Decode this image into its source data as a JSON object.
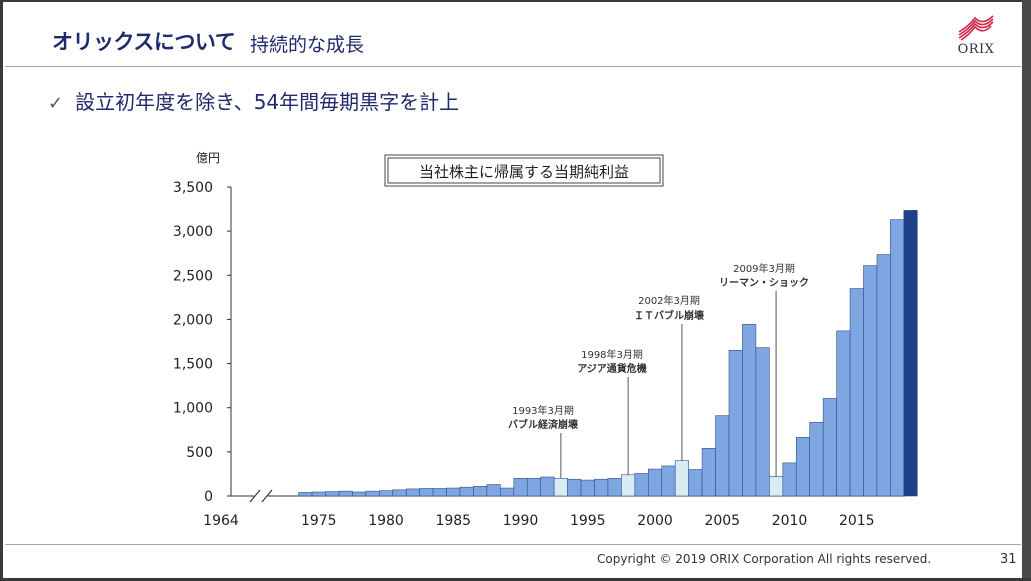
{
  "header": {
    "title": "オリックスについて",
    "subtitle": "持続的な成長",
    "logo_text": "ORIX"
  },
  "bullet": "設立初年度を除き、54年間毎期黒字を計上",
  "footer": {
    "copyright": "Copyright © 2019 ORIX Corporation  All rights reserved.",
    "page_number": "31"
  },
  "colors": {
    "bar": "#7ea6e0",
    "bar_highlight": "#d8ecf4",
    "bar_latest": "#1f3f86",
    "bar_stroke": "#2f4f8f",
    "title_navy": "#1f2a6e",
    "logo_red": "#d0284c"
  },
  "chart_data": {
    "type": "bar",
    "title": "当社株主に帰属する当期純利益",
    "ylabel": "億円",
    "ylim": [
      0,
      3500
    ],
    "yticks": [
      0,
      500,
      1000,
      1500,
      2000,
      2500,
      3000,
      3500
    ],
    "ytick_labels": [
      "0",
      "500",
      "1,000",
      "1,500",
      "2,000",
      "2,500",
      "3,000",
      "3,500"
    ],
    "x_first_label": "1964",
    "xtick_labels": [
      "1975",
      "1980",
      "1985",
      "1990",
      "1995",
      "2000",
      "2005",
      "2010",
      "2015"
    ],
    "axis_break": true,
    "years": [
      1974,
      1975,
      1976,
      1977,
      1978,
      1979,
      1980,
      1981,
      1982,
      1983,
      1984,
      1985,
      1986,
      1987,
      1988,
      1989,
      1990,
      1991,
      1992,
      1993,
      1994,
      1995,
      1996,
      1997,
      1998,
      1999,
      2000,
      2001,
      2002,
      2003,
      2004,
      2005,
      2006,
      2007,
      2008,
      2009,
      2010,
      2011,
      2012,
      2013,
      2014,
      2015,
      2016,
      2017,
      2018,
      2019
    ],
    "values": [
      40,
      45,
      50,
      55,
      45,
      55,
      60,
      70,
      80,
      85,
      85,
      90,
      100,
      110,
      130,
      90,
      200,
      200,
      215,
      200,
      190,
      180,
      190,
      200,
      240,
      255,
      305,
      340,
      400,
      300,
      540,
      910,
      1650,
      1945,
      1680,
      220,
      375,
      665,
      835,
      1105,
      1870,
      2350,
      2610,
      2735,
      3130,
      3235
    ],
    "highlight_years": [
      1993,
      1998,
      2002,
      2009
    ],
    "latest_year": 2019,
    "annotations": [
      {
        "year": 1993,
        "period": "1993年3月期",
        "label": "バブル経済崩壊"
      },
      {
        "year": 1998,
        "period": "1998年3月期",
        "label": "アジア通貨危機"
      },
      {
        "year": 2002,
        "period": "2002年3月期",
        "label": "ＩＴバブル崩壊"
      },
      {
        "year": 2009,
        "period": "2009年3月期",
        "label": "リーマン・ショック"
      }
    ]
  }
}
